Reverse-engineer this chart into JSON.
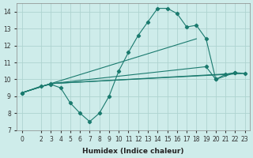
{
  "xlabel": "Humidex (Indice chaleur)",
  "ylabel": "",
  "xlim": [
    -0.5,
    23.5
  ],
  "ylim": [
    7,
    14.5
  ],
  "xticks": [
    0,
    2,
    3,
    4,
    5,
    6,
    7,
    8,
    9,
    10,
    11,
    12,
    13,
    14,
    15,
    16,
    17,
    18,
    19,
    20,
    21,
    22,
    23
  ],
  "yticks": [
    7,
    8,
    9,
    10,
    11,
    12,
    13,
    14
  ],
  "bg_color": "#ceecea",
  "grid_color": "#aed4d0",
  "line_color": "#1a7a6e",
  "lines": [
    {
      "x": [
        0,
        2,
        3,
        4,
        5,
        6,
        7,
        8,
        9,
        10,
        11,
        12,
        13,
        14,
        15,
        16,
        17,
        18,
        19,
        20,
        21,
        22,
        23
      ],
      "y": [
        9.2,
        9.6,
        9.7,
        9.5,
        8.6,
        8.0,
        7.5,
        8.0,
        9.0,
        10.5,
        11.6,
        12.6,
        13.4,
        14.2,
        14.2,
        13.9,
        13.1,
        13.2,
        12.4,
        10.0,
        10.3,
        10.4,
        10.35
      ],
      "markers": true
    },
    {
      "x": [
        0,
        3,
        18
      ],
      "y": [
        9.2,
        9.75,
        12.4
      ],
      "markers": false
    },
    {
      "x": [
        0,
        3,
        19,
        20,
        22
      ],
      "y": [
        9.2,
        9.75,
        10.75,
        10.0,
        10.4
      ],
      "markers": true
    },
    {
      "x": [
        0,
        3,
        22
      ],
      "y": [
        9.2,
        9.75,
        10.35
      ],
      "markers": false
    },
    {
      "x": [
        0,
        3,
        23
      ],
      "y": [
        9.2,
        9.75,
        10.35
      ],
      "markers": false
    }
  ]
}
